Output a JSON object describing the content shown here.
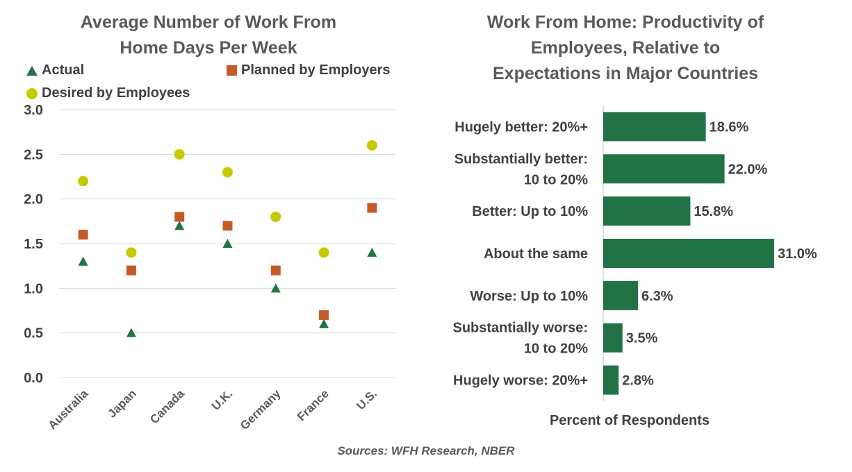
{
  "chart_data": [
    {
      "type": "scatter",
      "title": "Average Number of Work From Home Days Per Week",
      "title_lines": [
        "Average Number of Work From",
        "Home Days Per Week"
      ],
      "categories": [
        "Australia",
        "Japan",
        "Canada",
        "U.K.",
        "Germany",
        "France",
        "U.S."
      ],
      "series": [
        {
          "name": "Actual",
          "marker": "triangle",
          "color": "#217346",
          "values": [
            1.3,
            0.5,
            1.7,
            1.5,
            1.0,
            0.6,
            1.4
          ]
        },
        {
          "name": "Planned by Employers",
          "marker": "square",
          "color": "#c55a28",
          "values": [
            1.6,
            1.2,
            1.8,
            1.7,
            1.2,
            0.7,
            1.9
          ]
        },
        {
          "name": "Desired by Employees",
          "marker": "circle",
          "color": "#c5c900",
          "values": [
            2.2,
            1.4,
            2.5,
            2.3,
            1.8,
            1.4,
            2.6
          ]
        }
      ],
      "ylim": [
        0,
        3
      ],
      "yticks": [
        "0.0",
        "0.5",
        "1.0",
        "1.5",
        "2.0",
        "2.5",
        "3.0"
      ],
      "grid": true,
      "legend": "top"
    },
    {
      "type": "bar",
      "orientation": "horizontal",
      "title": "Work From Home: Productivity of Employees, Relative to Expectations in Major Countries",
      "title_lines": [
        "Work From Home: Productivity of",
        "Employees, Relative to",
        "Expectations in Major Countries"
      ],
      "categories": [
        [
          "Hugely better: 20%+"
        ],
        [
          "Substantially better:",
          "10 to 20%"
        ],
        [
          "Better: Up to 10%"
        ],
        [
          "About the same"
        ],
        [
          "Worse: Up to 10%"
        ],
        [
          "Substantially worse:",
          "10 to 20%"
        ],
        [
          "Hugely worse: 20%+"
        ]
      ],
      "values": [
        18.6,
        22.0,
        15.8,
        31.0,
        6.3,
        3.5,
        2.8
      ],
      "value_labels": [
        "18.6%",
        "22.0%",
        "15.8%",
        "31.0%",
        "6.3%",
        "3.5%",
        "2.8%"
      ],
      "color": "#217346",
      "xlabel": "Percent of Respondents"
    }
  ],
  "source": "Sources: WFH Research, NBER"
}
